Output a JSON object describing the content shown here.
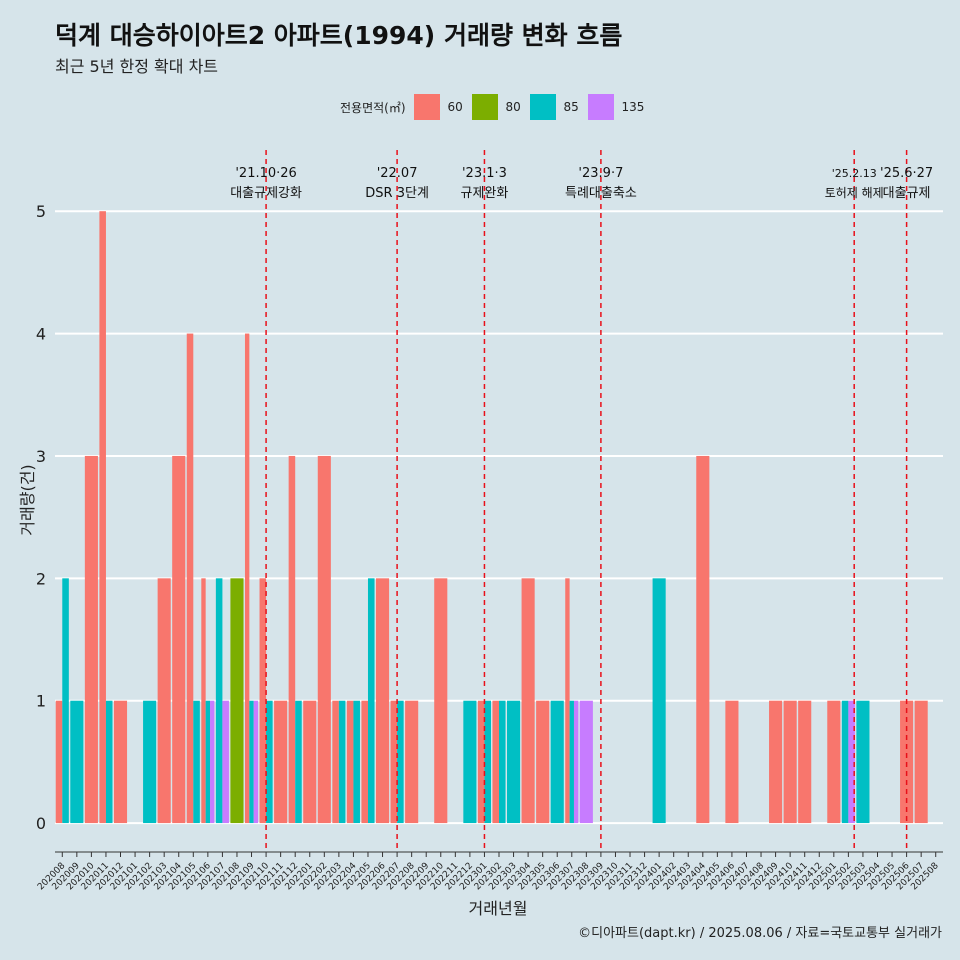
{
  "header": {
    "title": "덕계 대승하이아트2 아파트(1994) 거래량 변화 흐름",
    "subtitle": "최근 5년 한정 확대 차트"
  },
  "legend": {
    "title": "전용면적(㎡)",
    "items": [
      {
        "label": "60",
        "color": "#f8766d"
      },
      {
        "label": "80",
        "color": "#7cae00"
      },
      {
        "label": "85",
        "color": "#00bfc4"
      },
      {
        "label": "135",
        "color": "#c77cff"
      }
    ]
  },
  "caption": "©디아파트(dapt.kr) / 2025.08.06 / 자료=국토교통부 실거래가",
  "colors": {
    "background": "#d6e4ea",
    "gridline": "#ffffff",
    "event_line": "#e8101a"
  },
  "chart_data": {
    "type": "bar",
    "xlabel": "거래년월",
    "ylabel": "거래량(건)",
    "ylim": [
      -0.22,
      5.5
    ],
    "yticks": [
      0,
      1,
      2,
      3,
      4,
      5
    ],
    "categories": [
      "202008",
      "202009",
      "202010",
      "202011",
      "202012",
      "202101",
      "202102",
      "202103",
      "202104",
      "202105",
      "202106",
      "202107",
      "202108",
      "202109",
      "202110",
      "202111",
      "202112",
      "202201",
      "202202",
      "202203",
      "202204",
      "202205",
      "202206",
      "202207",
      "202208",
      "202209",
      "202210",
      "202211",
      "202212",
      "202301",
      "202302",
      "202303",
      "202304",
      "202305",
      "202306",
      "202307",
      "202308",
      "202309",
      "202310",
      "202311",
      "202312",
      "202401",
      "202402",
      "202403",
      "202404",
      "202405",
      "202406",
      "202407",
      "202408",
      "202409",
      "202410",
      "202411",
      "202412",
      "202501",
      "202502",
      "202503",
      "202504",
      "202505",
      "202506",
      "202507",
      "202508"
    ],
    "series": [
      {
        "name": "60",
        "values": [
          1,
          0,
          3,
          5,
          1,
          0,
          0,
          2,
          3,
          4,
          2,
          0,
          0,
          4,
          2,
          1,
          3,
          1,
          3,
          1,
          1,
          1,
          2,
          1,
          1,
          0,
          2,
          0,
          0,
          1,
          1,
          0,
          2,
          1,
          0,
          2,
          0,
          0,
          0,
          0,
          0,
          0,
          0,
          0,
          3,
          0,
          1,
          0,
          0,
          1,
          1,
          1,
          0,
          1,
          0,
          0,
          0,
          0,
          1,
          1,
          0
        ]
      },
      {
        "name": "80",
        "values": [
          0,
          0,
          0,
          0,
          0,
          0,
          0,
          0,
          0,
          0,
          0,
          0,
          2,
          0,
          0,
          0,
          0,
          0,
          0,
          0,
          0,
          0,
          0,
          0,
          0,
          0,
          0,
          0,
          0,
          0,
          0,
          0,
          0,
          0,
          0,
          0,
          0,
          0,
          0,
          0,
          0,
          0,
          0,
          0,
          0,
          0,
          0,
          0,
          0,
          0,
          0,
          0,
          0,
          0,
          0,
          0,
          0,
          0,
          0,
          0,
          0
        ]
      },
      {
        "name": "85",
        "values": [
          2,
          1,
          0,
          1,
          0,
          0,
          1,
          0,
          0,
          1,
          1,
          2,
          0,
          1,
          1,
          0,
          1,
          0,
          0,
          1,
          1,
          2,
          0,
          1,
          0,
          0,
          0,
          0,
          1,
          1,
          1,
          1,
          0,
          0,
          1,
          1,
          0,
          0,
          0,
          0,
          0,
          2,
          0,
          0,
          0,
          0,
          0,
          0,
          0,
          0,
          0,
          0,
          0,
          0,
          1,
          1,
          0,
          0,
          0,
          0,
          0
        ]
      },
      {
        "name": "135",
        "values": [
          0,
          0,
          0,
          0,
          0,
          0,
          0,
          0,
          0,
          0,
          1,
          1,
          0,
          1,
          0,
          0,
          0,
          0,
          0,
          0,
          0,
          0,
          0,
          0,
          0,
          0,
          0,
          0,
          0,
          0,
          0,
          0,
          0,
          0,
          0,
          1,
          1,
          0,
          0,
          0,
          0,
          0,
          0,
          0,
          0,
          0,
          0,
          0,
          0,
          0,
          0,
          0,
          0,
          0,
          1,
          0,
          0,
          0,
          0,
          0,
          0
        ]
      }
    ],
    "annotations": [
      {
        "category": "202110",
        "offset": 0.0,
        "date": "'21.10·26",
        "label": "대출규제강화"
      },
      {
        "category": "202207",
        "offset": 0.0,
        "date": "'22.07",
        "label": "DSR 3단계"
      },
      {
        "category": "202301",
        "offset": 0.0,
        "date": "'23.1·3",
        "label": "규제완화"
      },
      {
        "category": "202309",
        "offset": 0.0,
        "date": "'23.9·7",
        "label": "특례대출축소"
      },
      {
        "category": "202502",
        "offset": 0.4,
        "date": "'25.2.13",
        "label": "토허제 해제"
      },
      {
        "category": "202506",
        "offset": 0.0,
        "date": "'25.6·27",
        "label": "대출규제"
      }
    ]
  }
}
